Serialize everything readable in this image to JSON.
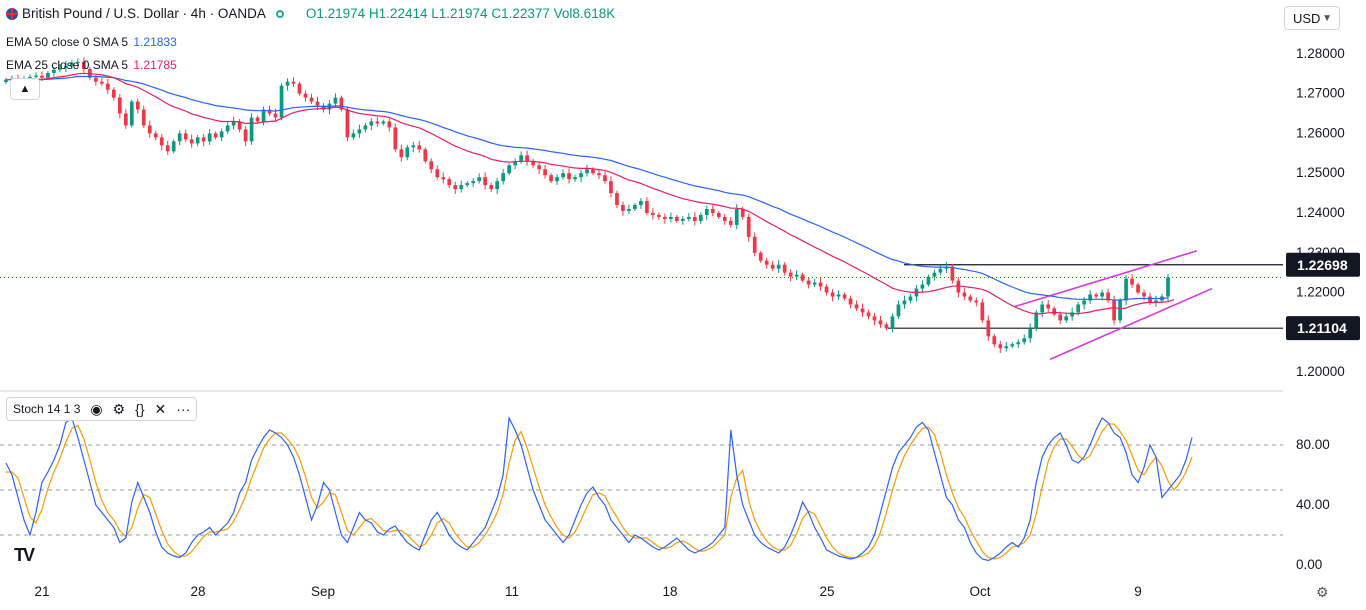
{
  "header": {
    "symbol_title": "British Pound / U.S. Dollar · 4h · OANDA",
    "open": "O1.21974",
    "high": "H1.22414",
    "low": "L1.21974",
    "close": "C1.22377",
    "volume": "Vol8.618K"
  },
  "indicators": {
    "ema50": {
      "label": "EMA 50 close 0 SMA 5",
      "value": "1.21833",
      "color": "#2962ff"
    },
    "ema25": {
      "label": "EMA 25 close 0 SMA 5",
      "value": "1.21785",
      "color": "#e91e63"
    }
  },
  "currency_selector": "USD",
  "stoch_label": "Stoch 14 1 3",
  "icons": [
    "eye-icon",
    "gear-icon",
    "braces-icon",
    "close-icon",
    "more-icon",
    "chevron-up-icon",
    "tradingview-logo-icon"
  ],
  "chart_data": {
    "type": "candlestick",
    "price_axis_ticks": [
      "1.28000",
      "1.27000",
      "1.26000",
      "1.25000",
      "1.24000",
      "1.23000",
      "1.22000",
      "1.21000",
      "1.20000"
    ],
    "price_range": [
      1.196,
      1.286
    ],
    "time_labels": [
      "21",
      "28",
      "Sep",
      "11",
      "18",
      "25",
      "Oct",
      "9"
    ],
    "level_labels": [
      "1.22698",
      "1.21104"
    ],
    "resistance": 1.22698,
    "support": 1.21104,
    "current_price": 1.22377,
    "colors": {
      "up": "#089981",
      "down": "#f23645",
      "ema50": "#2962ff",
      "ema25": "#e91e63",
      "channel": "#d63ae0",
      "stoch_k": "#2962ff",
      "stoch_d": "#ff9800"
    },
    "closes": [
      1.2735,
      1.2738,
      1.2725,
      1.2732,
      1.2742,
      1.2745,
      1.274,
      1.2752,
      1.276,
      1.2765,
      1.277,
      1.2778,
      1.278,
      1.2762,
      1.274,
      1.273,
      1.2725,
      1.271,
      1.269,
      1.265,
      1.262,
      1.268,
      1.266,
      1.262,
      1.26,
      1.259,
      1.257,
      1.2555,
      1.258,
      1.26,
      1.2585,
      1.2575,
      1.259,
      1.258,
      1.26,
      1.259,
      1.2605,
      1.262,
      1.263,
      1.261,
      1.258,
      1.264,
      1.263,
      1.266,
      1.265,
      1.264,
      1.272,
      1.273,
      1.2725,
      1.27,
      1.269,
      1.268,
      1.267,
      1.266,
      1.2675,
      1.269,
      1.266,
      1.259,
      1.26,
      1.261,
      1.262,
      1.263,
      1.2625,
      1.263,
      1.2615,
      1.256,
      1.254,
      1.2565,
      1.257,
      1.256,
      1.253,
      1.251,
      1.249,
      1.2485,
      1.247,
      1.246,
      1.247,
      1.2475,
      1.248,
      1.249,
      1.247,
      1.246,
      1.248,
      1.25,
      1.252,
      1.253,
      1.2545,
      1.253,
      1.252,
      1.251,
      1.2495,
      1.248,
      1.249,
      1.25,
      1.2485,
      1.249,
      1.25,
      1.251,
      1.25,
      1.2495,
      1.248,
      1.245,
      1.242,
      1.2405,
      1.241,
      1.242,
      1.243,
      1.24,
      1.2395,
      1.239,
      1.2385,
      1.239,
      1.238,
      1.2385,
      1.239,
      1.238,
      1.2395,
      1.241,
      1.24,
      1.239,
      1.238,
      1.237,
      1.241,
      1.239,
      1.234,
      1.23,
      1.228,
      1.227,
      1.226,
      1.227,
      1.225,
      1.224,
      1.2245,
      1.223,
      1.222,
      1.2225,
      1.2215,
      1.22,
      1.219,
      1.2195,
      1.2185,
      1.217,
      1.216,
      1.215,
      1.214,
      1.213,
      1.212,
      1.211,
      1.214,
      1.217,
      1.218,
      1.219,
      1.221,
      1.222,
      1.224,
      1.225,
      1.226,
      1.2265,
      1.223,
      1.22,
      1.219,
      1.218,
      1.2175,
      1.213,
      1.209,
      1.207,
      1.206,
      1.2065,
      1.207,
      1.2075,
      1.2085,
      1.211,
      1.215,
      1.217,
      1.216,
      1.2145,
      1.213,
      1.214,
      1.215,
      1.217,
      1.218,
      1.2195,
      1.219,
      1.22,
      1.218,
      1.213,
      1.218,
      1.2235,
      1.222,
      1.22,
      1.219,
      1.2175,
      1.218,
      1.219,
      1.2238
    ],
    "ema50": [
      1.2735,
      1.2735,
      1.2734,
      1.2734,
      1.2734,
      1.2735,
      1.2735,
      1.2736,
      1.2737,
      1.2738,
      1.2739,
      1.2741,
      1.2743,
      1.2743,
      1.2743,
      1.2743,
      1.2742,
      1.2741,
      1.274,
      1.2737,
      1.2733,
      1.2731,
      1.2728,
      1.2724,
      1.2719,
      1.2714,
      1.2709,
      1.2703,
      1.2698,
      1.2694,
      1.269,
      1.2685,
      1.2681,
      1.2677,
      1.2674,
      1.267,
      1.2668,
      1.2666,
      1.2664,
      1.2662,
      1.2659,
      1.2658,
      1.2657,
      1.2657,
      1.2657,
      1.2656,
      1.2659,
      1.2662,
      1.2665,
      1.2666,
      1.2667,
      1.2668,
      1.2668,
      1.2668,
      1.2668,
      1.2669,
      1.2669,
      1.2666,
      1.2663,
      1.2661,
      1.2659,
      1.2658,
      1.2656,
      1.2655,
      1.2653,
      1.2649,
      1.2645,
      1.2641,
      1.2638,
      1.2635,
      1.2631,
      1.2626,
      1.2621,
      1.2615,
      1.261,
      1.2604,
      1.2599,
      1.2594,
      1.259,
      1.2586,
      1.2581,
      1.2576,
      1.2572,
      1.2569,
      1.2567,
      1.2565,
      1.2564,
      1.2563,
      1.2561,
      1.2559,
      1.2557,
      1.2554,
      1.2552,
      1.255,
      1.2547,
      1.2545,
      1.2543,
      1.2542,
      1.254,
      1.2538,
      1.2535,
      1.2532,
      1.2527,
      1.2522,
      1.2517,
      1.2513,
      1.2509,
      1.2504,
      1.2499,
      1.2494,
      1.249,
      1.2485,
      1.2481,
      1.2476,
      1.2472,
      1.2468,
      1.2465,
      1.2462,
      1.2459,
      1.2456,
      1.2452,
      1.2449,
      1.2447,
      1.2445,
      1.2441,
      1.2435,
      1.2429,
      1.2423,
      1.2416,
      1.2411,
      1.2404,
      1.2397,
      1.2391,
      1.2385,
      1.2378,
      1.2372,
      1.2366,
      1.2359,
      1.2352,
      1.2346,
      1.2339,
      1.2332,
      1.2325,
      1.2318,
      1.2311,
      1.2303,
      1.2296,
      1.2289,
      1.2283,
      1.2279,
      1.2274,
      1.2271,
      1.2268,
      1.2266,
      1.2265,
      1.2264,
      1.2264,
      1.2264,
      1.2263,
      1.226,
      1.2258,
      1.2255,
      1.2252,
      1.2248,
      1.2241,
      1.2234,
      1.2227,
      1.222,
      1.2214,
      1.2208,
      1.2202,
      1.2198,
      1.2196,
      1.2194,
      1.2192,
      1.219,
      1.2187,
      1.2186,
      1.2184,
      1.2183,
      1.2183,
      1.2183,
      1.2183,
      1.2183,
      1.2183,
      1.2181,
      1.2181,
      1.2183,
      1.2184,
      1.2185,
      1.2185,
      1.2185,
      1.2185,
      1.2185,
      1.2187
    ],
    "ema25": [
      1.2735,
      1.2735,
      1.2734,
      1.2734,
      1.2735,
      1.2736,
      1.2736,
      1.2738,
      1.274,
      1.2742,
      1.2744,
      1.2747,
      1.275,
      1.2751,
      1.275,
      1.2749,
      1.2747,
      1.2744,
      1.274,
      1.2733,
      1.2725,
      1.2721,
      1.2716,
      1.2708,
      1.27,
      1.2692,
      1.2683,
      1.2674,
      1.2667,
      1.2662,
      1.2656,
      1.2649,
      1.2645,
      1.264,
      1.2637,
      1.2633,
      1.263,
      1.263,
      1.263,
      1.2629,
      1.2625,
      1.2626,
      1.2626,
      1.2629,
      1.263,
      1.2631,
      1.2638,
      1.2646,
      1.2652,
      1.2656,
      1.2659,
      1.2661,
      1.2662,
      1.2663,
      1.2664,
      1.2666,
      1.2665,
      1.2659,
      1.2654,
      1.265,
      1.2648,
      1.2646,
      1.2644,
      1.2643,
      1.264,
      1.2634,
      1.2627,
      1.2622,
      1.2618,
      1.2614,
      1.2607,
      1.26,
      1.2592,
      1.2584,
      1.2576,
      1.2568,
      1.2562,
      1.2556,
      1.2551,
      1.2547,
      1.2542,
      1.2535,
      1.2532,
      1.2529,
      1.2528,
      1.2529,
      1.253,
      1.253,
      1.253,
      1.2528,
      1.2526,
      1.2522,
      1.252,
      1.2518,
      1.2515,
      1.2513,
      1.2512,
      1.2512,
      1.2511,
      1.2509,
      1.2507,
      1.2502,
      1.2496,
      1.2489,
      1.2483,
      1.2479,
      1.2474,
      1.2468,
      1.2462,
      1.2457,
      1.2451,
      1.2446,
      1.2441,
      1.2436,
      1.2433,
      1.2429,
      1.2426,
      1.2424,
      1.2422,
      1.2419,
      1.2416,
      1.2412,
      1.2412,
      1.241,
      1.2404,
      1.2396,
      1.2387,
      1.2378,
      1.237,
      1.2362,
      1.2354,
      1.2345,
      1.2338,
      1.233,
      1.2322,
      1.2314,
      1.2307,
      1.2299,
      1.2291,
      1.2284,
      1.2277,
      1.2269,
      1.2261,
      1.2253,
      1.2245,
      1.2236,
      1.2228,
      1.222,
      1.2211,
      1.2206,
      1.2203,
      1.2201,
      1.22,
      1.2201,
      1.2202,
      1.2205,
      1.2209,
      1.2213,
      1.2216,
      1.2217,
      1.2215,
      1.2213,
      1.2211,
      1.2208,
      1.2202,
      1.2193,
      1.2184,
      1.2175,
      1.2167,
      1.216,
      1.2154,
      1.2149,
      1.2146,
      1.2147,
      1.2149,
      1.215,
      1.2149,
      1.2148,
      1.2147,
      1.2147,
      1.2149,
      1.2151,
      1.2155,
      1.2157,
      1.216,
      1.2162,
      1.2159,
      1.2161,
      1.2167,
      1.2171,
      1.2174,
      1.2175,
      1.2175,
      1.2176,
      1.2177,
      1.2182
    ],
    "stoch_k": [
      68,
      60,
      45,
      30,
      20,
      35,
      55,
      62,
      70,
      80,
      95,
      98,
      85,
      70,
      55,
      40,
      35,
      30,
      25,
      15,
      18,
      42,
      55,
      45,
      35,
      22,
      12,
      8,
      6,
      5,
      8,
      15,
      20,
      22,
      25,
      20,
      24,
      28,
      35,
      48,
      55,
      70,
      78,
      85,
      90,
      88,
      85,
      80,
      72,
      60,
      45,
      30,
      40,
      55,
      50,
      35,
      20,
      15,
      25,
      35,
      30,
      28,
      22,
      20,
      24,
      26,
      20,
      15,
      12,
      10,
      20,
      30,
      35,
      28,
      20,
      15,
      12,
      10,
      15,
      20,
      25,
      35,
      45,
      60,
      98,
      90,
      80,
      65,
      50,
      40,
      30,
      25,
      20,
      15,
      20,
      30,
      40,
      48,
      52,
      45,
      40,
      30,
      25,
      20,
      15,
      20,
      18,
      15,
      12,
      10,
      12,
      15,
      18,
      14,
      10,
      8,
      10,
      12,
      15,
      20,
      25,
      90,
      60,
      40,
      30,
      20,
      15,
      12,
      10,
      8,
      12,
      20,
      30,
      42,
      35,
      25,
      18,
      10,
      8,
      6,
      5,
      4,
      5,
      8,
      12,
      20,
      35,
      50,
      65,
      75,
      80,
      85,
      92,
      95,
      90,
      75,
      60,
      45,
      40,
      30,
      25,
      15,
      8,
      4,
      3,
      5,
      8,
      12,
      15,
      12,
      18,
      30,
      55,
      72,
      80,
      85,
      88,
      80,
      70,
      68,
      72,
      80,
      90,
      98,
      95,
      88,
      85,
      75,
      60,
      55,
      65,
      80,
      72,
      45,
      50,
      55,
      60,
      70,
      85
    ],
    "stoch_d": [
      62,
      62,
      58,
      45,
      32,
      28,
      37,
      51,
      62,
      71,
      82,
      91,
      93,
      84,
      70,
      55,
      43,
      35,
      30,
      23,
      19,
      25,
      38,
      47,
      45,
      34,
      23,
      14,
      9,
      6,
      6,
      9,
      14,
      19,
      22,
      22,
      23,
      24,
      29,
      37,
      46,
      58,
      68,
      78,
      84,
      88,
      88,
      84,
      79,
      71,
      59,
      45,
      38,
      42,
      48,
      47,
      35,
      23,
      20,
      25,
      30,
      31,
      27,
      23,
      22,
      23,
      23,
      20,
      16,
      12,
      14,
      20,
      28,
      31,
      28,
      21,
      16,
      12,
      12,
      15,
      20,
      27,
      35,
      47,
      68,
      83,
      89,
      78,
      65,
      52,
      40,
      32,
      25,
      20,
      18,
      22,
      30,
      39,
      47,
      48,
      46,
      38,
      32,
      25,
      20,
      18,
      18,
      18,
      15,
      12,
      11,
      12,
      15,
      16,
      14,
      11,
      9,
      10,
      12,
      16,
      20,
      45,
      58,
      63,
      43,
      30,
      22,
      16,
      12,
      10,
      10,
      13,
      21,
      31,
      36,
      34,
      26,
      18,
      12,
      8,
      6,
      5,
      5,
      6,
      8,
      13,
      22,
      35,
      50,
      63,
      73,
      80,
      86,
      91,
      92,
      87,
      75,
      60,
      48,
      38,
      32,
      23,
      16,
      9,
      5,
      4,
      5,
      8,
      12,
      13,
      15,
      20,
      34,
      52,
      69,
      79,
      84,
      84,
      79,
      73,
      70,
      73,
      81,
      89,
      94,
      94,
      89,
      83,
      73,
      63,
      60,
      67,
      72,
      66,
      56,
      50,
      55,
      62,
      72
    ]
  }
}
